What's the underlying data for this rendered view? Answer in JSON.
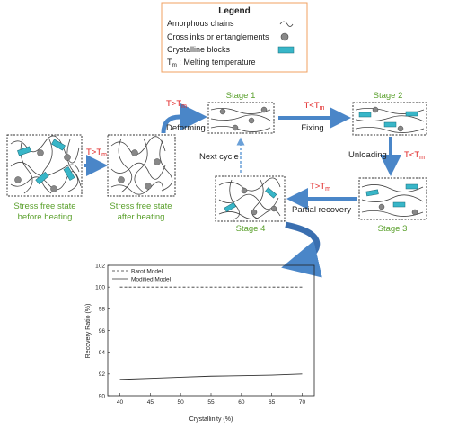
{
  "legend": {
    "title": "Legend",
    "items": [
      {
        "label": "Amorphous chains",
        "icon": "squiggle-icon"
      },
      {
        "label": "Crosslinks or entanglements",
        "icon": "gray-dot-icon"
      },
      {
        "label": "Crystalline blocks",
        "icon": "teal-block-icon"
      }
    ],
    "melting_prefix": "T",
    "melting_sub": "m",
    "melting_suffix": " : Melting temperature"
  },
  "stages": {
    "s0_line1": "Stress free state",
    "s0_line2": "before heating",
    "s1_line1": "Stress free state",
    "s1_line2": "after heating",
    "stage1": "Stage 1",
    "stage2": "Stage 2",
    "stage3": "Stage 3",
    "stage4": "Stage 4"
  },
  "arrows": {
    "t_gt_tm": "T>T",
    "t_lt_tm": "T<T",
    "sub": "m",
    "deforming": "Deforming",
    "fixing": "Fixing",
    "unloading": "Unloading",
    "partial_recovery": "Partial recovery",
    "next_cycle": "Next cycle"
  },
  "colors": {
    "green": "#5aa02c",
    "red": "#e02020",
    "arrow": "#4a86c8",
    "teal": "#38b6c8",
    "dot": "#888888"
  },
  "chart_data": {
    "type": "line",
    "xlabel": "Crystallinity (%)",
    "ylabel": "Recovery Ratio (%)",
    "xlim": [
      38,
      72
    ],
    "ylim": [
      90,
      102
    ],
    "xticks": [
      40,
      45,
      50,
      55,
      60,
      65,
      70
    ],
    "yticks": [
      90,
      92,
      94,
      96,
      98,
      100,
      102
    ],
    "series": [
      {
        "name": "Barot Model",
        "style": "dashed",
        "x": [
          40,
          70
        ],
        "y": [
          100,
          100
        ]
      },
      {
        "name": "Modified Model",
        "style": "solid",
        "x": [
          40,
          45,
          50,
          55,
          60,
          65,
          70
        ],
        "y": [
          91.5,
          91.6,
          91.7,
          91.8,
          91.85,
          91.9,
          92.0
        ]
      }
    ],
    "legend_position": "top-left"
  }
}
